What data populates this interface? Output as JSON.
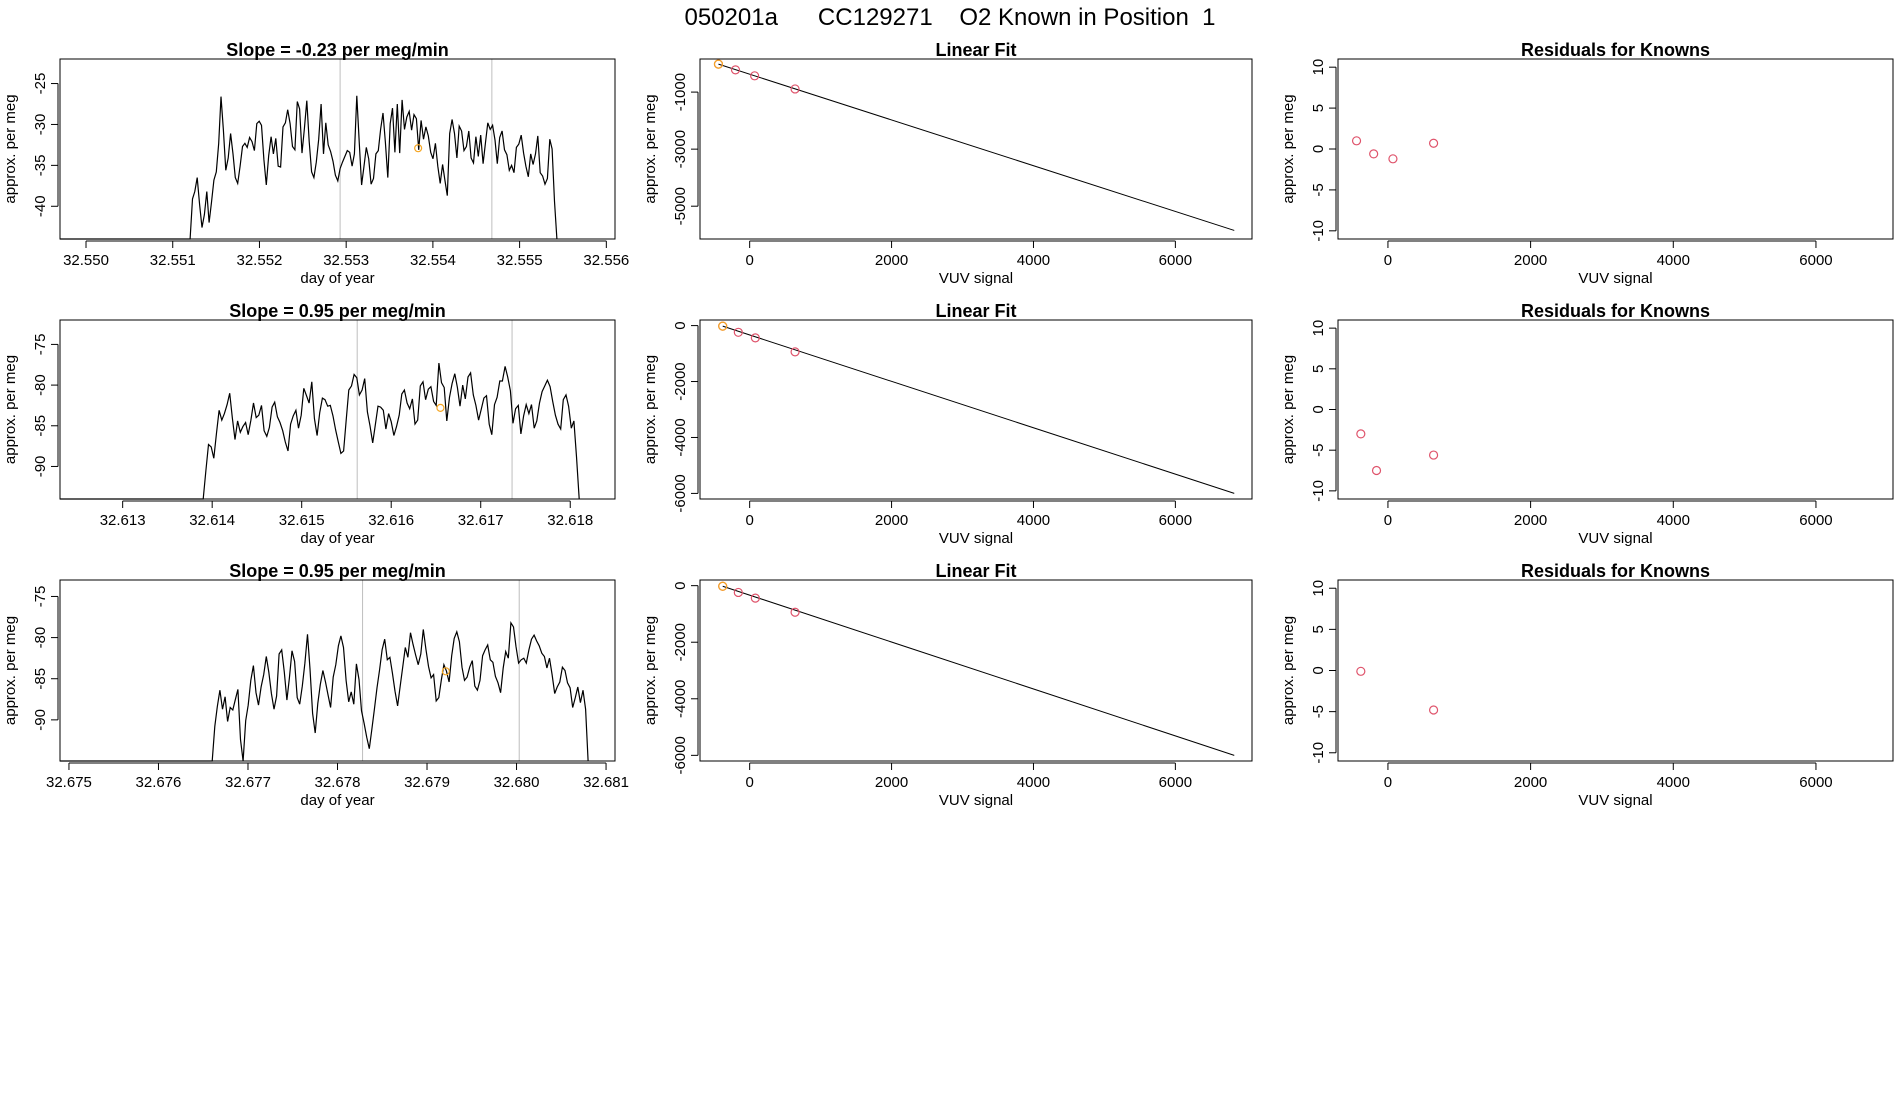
{
  "page_title": "050201a      CC129271    O2 Known in Position  1",
  "colors": {
    "line": "#000000",
    "known_point": "#DF536B",
    "current_point": "#F5A623",
    "vline": "#BEBEBE"
  },
  "chart_data": [
    {
      "type": "line",
      "title": "Slope =  -0.23  per meg/min",
      "xlabel": "day of year",
      "ylabel": "approx. per meg",
      "xlim": [
        32.5497,
        32.5561
      ],
      "ylim": [
        -44.0,
        -22.0
      ],
      "x_ticks": [
        "32.550",
        "32.551",
        "32.552",
        "32.553",
        "32.554",
        "32.555",
        "32.556"
      ],
      "y_ticks": [
        "-25",
        "-30",
        "-35",
        "-40"
      ],
      "vlines": [
        32.55293,
        32.55468
      ],
      "x_start": 32.5512,
      "x_end": 32.55543,
      "values": [
        -44.0,
        -39.1,
        -38.2,
        -36.5,
        -39.8,
        -42.6,
        -41.0,
        -38.2,
        -42.0,
        -39.5,
        -36.8,
        -35.8,
        -32.3,
        -26.6,
        -30.7,
        -35.6,
        -34.1,
        -31.1,
        -33.6,
        -36.5,
        -37.2,
        -35.1,
        -32.7,
        -32.3,
        -32.8,
        -31.6,
        -32.1,
        -33.2,
        -29.9,
        -29.6,
        -30.1,
        -34.3,
        -37.4,
        -33.8,
        -31.5,
        -33.6,
        -31.7,
        -35.1,
        -35.2,
        -30.3,
        -29.8,
        -28.2,
        -29.9,
        -32.7,
        -33.1,
        -27.2,
        -28.1,
        -33.5,
        -30.5,
        -27.1,
        -32.1,
        -35.8,
        -36.5,
        -34.6,
        -31.8,
        -27.5,
        -33.6,
        -29.8,
        -32.5,
        -33.3,
        -34.5,
        -36.2,
        -36.9,
        -35.4,
        -34.6,
        -33.9,
        -33.2,
        -33.4,
        -35.1,
        -33.6,
        -26.5,
        -32.1,
        -37.4,
        -35.1,
        -32.8,
        -34.2,
        -37.3,
        -36.6,
        -33.6,
        -33.2,
        -30.6,
        -28.6,
        -32.2,
        -36.5,
        -29.9,
        -28.0,
        -33.4,
        -27.5,
        -33.5,
        -27.0,
        -30.6,
        -29.1,
        -28.4,
        -30.7,
        -28.8,
        -29.3,
        -33.1,
        -29.5,
        -31.8,
        -30.3,
        -31.4,
        -33.4,
        -34.2,
        -32.3,
        -35.1,
        -37.2,
        -34.9,
        -36.8,
        -38.7,
        -31.1,
        -29.4,
        -31.1,
        -34.1,
        -30.2,
        -30.8,
        -33.2,
        -32.7,
        -30.8,
        -34.1,
        -34.7,
        -31.5,
        -33.9,
        -31.3,
        -34.8,
        -32.3,
        -29.8,
        -30.6,
        -30.1,
        -31.9,
        -34.8,
        -31.6,
        -30.8,
        -33.1,
        -33.7,
        -35.6,
        -35.0,
        -35.9,
        -32.8,
        -32.4,
        -31.3,
        -33.5,
        -35.1,
        -36.4,
        -33.6,
        -34.9,
        -33.6,
        -31.4,
        -35.9,
        -36.3,
        -37.3,
        -36.6,
        -31.8,
        -33.0,
        -39.4,
        -44.0
      ],
      "point": {
        "x": 32.55383,
        "y": -32.9
      }
    },
    {
      "type": "scatter",
      "title": "Linear Fit",
      "xlabel": "VUV signal",
      "ylabel": "approx. per meg",
      "xlim": [
        -700,
        7080
      ],
      "ylim": [
        -6150,
        160
      ],
      "x_ticks": [
        "0",
        "2000",
        "4000",
        "6000"
      ],
      "y_ticks": [
        "-1000",
        "-3000",
        "-5000"
      ],
      "line": {
        "x": [
          -440,
          6830
        ],
        "y": [
          -20,
          -5850
        ]
      },
      "points": [
        {
          "x": -440,
          "y": -20
        },
        {
          "x": -200,
          "y": -220
        },
        {
          "x": 70,
          "y": -430
        },
        {
          "x": 640,
          "y": -890
        }
      ],
      "current_index": 0
    },
    {
      "type": "scatter",
      "title": "Residuals for Knowns",
      "xlabel": "VUV signal",
      "ylabel": "approx. per meg",
      "xlim": [
        -700,
        7080
      ],
      "ylim": [
        -11,
        11
      ],
      "x_ticks": [
        "0",
        "2000",
        "4000",
        "6000"
      ],
      "y_ticks": [
        "10",
        "5",
        "0",
        "-5",
        "-10"
      ],
      "points": [
        {
          "x": -440,
          "y": 1.0
        },
        {
          "x": -200,
          "y": -0.6
        },
        {
          "x": 70,
          "y": -1.2
        },
        {
          "x": 640,
          "y": 0.7
        }
      ]
    },
    {
      "type": "line",
      "title": "Slope =  0.95  per meg/min",
      "xlabel": "day of year",
      "ylabel": "approx. per meg",
      "xlim": [
        32.6123,
        32.6185
      ],
      "ylim": [
        -94.0,
        -72.0
      ],
      "x_ticks": [
        "32.613",
        "32.614",
        "32.615",
        "32.616",
        "32.617",
        "32.618"
      ],
      "y_ticks": [
        "-75",
        "-80",
        "-85",
        "-90"
      ],
      "vlines": [
        32.61562,
        32.61735
      ],
      "x_start": 32.6139,
      "x_end": 32.6181,
      "values": [
        -94.0,
        -90.5,
        -87.3,
        -87.6,
        -89.0,
        -85.9,
        -83.1,
        -84.3,
        -83.5,
        -82.4,
        -81.0,
        -84.1,
        -86.7,
        -84.4,
        -85.8,
        -85.1,
        -84.6,
        -86.1,
        -84.3,
        -82.2,
        -84.0,
        -83.7,
        -82.5,
        -85.6,
        -86.3,
        -85.2,
        -82.7,
        -82.1,
        -83.9,
        -84.6,
        -85.6,
        -87.0,
        -88.1,
        -84.8,
        -83.8,
        -83.1,
        -85.3,
        -83.7,
        -80.4,
        -81.3,
        -82.2,
        -79.6,
        -84.1,
        -86.2,
        -83.4,
        -81.6,
        -81.8,
        -82.6,
        -82.5,
        -83.8,
        -85.5,
        -87.0,
        -88.4,
        -88.1,
        -84.3,
        -80.6,
        -80.1,
        -78.7,
        -79.1,
        -81.2,
        -80.6,
        -79.2,
        -83.3,
        -85.0,
        -87.1,
        -84.9,
        -82.6,
        -82.7,
        -83.1,
        -85.4,
        -83.5,
        -84.5,
        -86.2,
        -85.1,
        -83.7,
        -81.1,
        -80.6,
        -82.2,
        -82.9,
        -81.7,
        -84.8,
        -84.3,
        -80.1,
        -79.6,
        -81.8,
        -80.5,
        -80.2,
        -82.0,
        -82.5,
        -77.3,
        -79.7,
        -80.3,
        -84.4,
        -81.5,
        -79.8,
        -78.6,
        -80.3,
        -82.6,
        -80.0,
        -81.7,
        -79.0,
        -78.5,
        -81.2,
        -82.5,
        -84.3,
        -83.0,
        -81.6,
        -81.3,
        -84.8,
        -86.1,
        -82.4,
        -81.5,
        -79.5,
        -79.5,
        -77.7,
        -79.0,
        -80.7,
        -84.7,
        -82.9,
        -82.5,
        -86.0,
        -83.8,
        -82.4,
        -83.5,
        -82.4,
        -85.3,
        -84.4,
        -82.2,
        -80.8,
        -80.1,
        -79.4,
        -80.2,
        -82.0,
        -83.7,
        -84.8,
        -85.4,
        -81.8,
        -81.2,
        -82.6,
        -85.3,
        -84.4,
        -88.8,
        -94.0
      ],
      "point": {
        "x": 32.61655,
        "y": -82.8
      }
    },
    {
      "type": "scatter",
      "title": "Linear Fit",
      "xlabel": "VUV signal",
      "ylabel": "approx. per meg",
      "xlim": [
        -700,
        7080
      ],
      "ylim": [
        -6200,
        200
      ],
      "x_ticks": [
        "0",
        "2000",
        "4000",
        "6000"
      ],
      "y_ticks": [
        "0",
        "-2000",
        "-4000",
        "-6000"
      ],
      "line": {
        "x": [
          -380,
          6830
        ],
        "y": [
          -20,
          -6000
        ]
      },
      "points": [
        {
          "x": -380,
          "y": -20
        },
        {
          "x": -160,
          "y": -240
        },
        {
          "x": 80,
          "y": -440
        },
        {
          "x": 640,
          "y": -940
        }
      ],
      "current_index": 0
    },
    {
      "type": "scatter",
      "title": "Residuals for Knowns",
      "xlabel": "VUV signal",
      "ylabel": "approx. per meg",
      "xlim": [
        -700,
        7080
      ],
      "ylim": [
        -11,
        11
      ],
      "x_ticks": [
        "0",
        "2000",
        "4000",
        "6000"
      ],
      "y_ticks": [
        "10",
        "5",
        "0",
        "-5",
        "-10"
      ],
      "points": [
        {
          "x": -380,
          "y": -3.0
        },
        {
          "x": -160,
          "y": -7.5
        },
        {
          "x": 640,
          "y": -5.6
        }
      ]
    },
    {
      "type": "line",
      "title": "Slope =  0.95  per meg/min",
      "xlabel": "day of year",
      "ylabel": "approx. per meg",
      "xlim": [
        32.6749,
        32.6811
      ],
      "ylim": [
        -95.0,
        -73.0
      ],
      "x_ticks": [
        "32.675",
        "32.676",
        "32.677",
        "32.678",
        "32.679",
        "32.680",
        "32.681"
      ],
      "y_ticks": [
        "-75",
        "-80",
        "-85",
        "-90"
      ],
      "vlines": [
        32.67828,
        32.68003
      ],
      "x_start": 32.6766,
      "x_end": 32.6808,
      "values": [
        -95.0,
        -90.8,
        -88.4,
        -86.4,
        -88.7,
        -87.2,
        -90.2,
        -88.5,
        -88.8,
        -87.5,
        -86.3,
        -92.4,
        -95.0,
        -90.1,
        -88.2,
        -85.2,
        -83.4,
        -86.7,
        -88.2,
        -86.0,
        -84.5,
        -82.3,
        -84.2,
        -86.8,
        -88.7,
        -87.1,
        -82.0,
        -81.5,
        -84.2,
        -87.6,
        -84.9,
        -81.6,
        -82.9,
        -87.3,
        -88.1,
        -85.9,
        -83.1,
        -79.6,
        -83.8,
        -89.2,
        -91.6,
        -88.0,
        -85.7,
        -84.0,
        -85.4,
        -87.0,
        -88.5,
        -84.8,
        -83.3,
        -81.0,
        -79.8,
        -81.2,
        -85.2,
        -87.8,
        -86.6,
        -88.1,
        -83.2,
        -85.1,
        -88.9,
        -90.4,
        -92.1,
        -93.5,
        -91.2,
        -88.7,
        -86.1,
        -83.9,
        -81.5,
        -80.2,
        -82.7,
        -82.4,
        -84.3,
        -86.5,
        -88.3,
        -85.9,
        -83.6,
        -81.2,
        -82.4,
        -79.4,
        -80.8,
        -82.1,
        -83.3,
        -82.0,
        -79.0,
        -81.4,
        -83.5,
        -84.9,
        -84.5,
        -87.7,
        -87.3,
        -85.1,
        -83.3,
        -84.1,
        -85.4,
        -82.2,
        -80.1,
        -79.3,
        -80.5,
        -83.6,
        -85.2,
        -84.8,
        -83.6,
        -82.8,
        -85.9,
        -86.4,
        -85.2,
        -82.2,
        -81.5,
        -80.9,
        -82.7,
        -83.0,
        -84.7,
        -85.5,
        -86.7,
        -83.7,
        -81.7,
        -82.5,
        -78.2,
        -78.7,
        -81.1,
        -83.1,
        -82.7,
        -82.5,
        -83.1,
        -81.5,
        -80.2,
        -79.7,
        -80.4,
        -81.0,
        -81.9,
        -82.3,
        -83.7,
        -82.5,
        -84.5,
        -86.8,
        -86.0,
        -85.4,
        -83.6,
        -84.0,
        -85.5,
        -86.1,
        -88.5,
        -87.3,
        -86.0,
        -87.9,
        -86.4,
        -88.7,
        -95.0
      ],
      "point": {
        "x": 32.67921,
        "y": -84.1
      }
    },
    {
      "type": "scatter",
      "title": "Linear Fit",
      "xlabel": "VUV signal",
      "ylabel": "approx. per meg",
      "xlim": [
        -700,
        7080
      ],
      "ylim": [
        -6200,
        200
      ],
      "x_ticks": [
        "0",
        "2000",
        "4000",
        "6000"
      ],
      "y_ticks": [
        "0",
        "-2000",
        "-4000",
        "-6000"
      ],
      "line": {
        "x": [
          -380,
          6830
        ],
        "y": [
          -20,
          -6000
        ]
      },
      "points": [
        {
          "x": -380,
          "y": -20
        },
        {
          "x": -160,
          "y": -240
        },
        {
          "x": 80,
          "y": -440
        },
        {
          "x": 640,
          "y": -940
        }
      ],
      "current_index": 0
    },
    {
      "type": "scatter",
      "title": "Residuals for Knowns",
      "xlabel": "VUV signal",
      "ylabel": "approx. per meg",
      "xlim": [
        -700,
        7080
      ],
      "ylim": [
        -11,
        11
      ],
      "x_ticks": [
        "0",
        "2000",
        "4000",
        "6000"
      ],
      "y_ticks": [
        "10",
        "5",
        "0",
        "-5",
        "-10"
      ],
      "points": [
        {
          "x": -380,
          "y": -0.1
        },
        {
          "x": 640,
          "y": -4.8
        }
      ]
    }
  ]
}
